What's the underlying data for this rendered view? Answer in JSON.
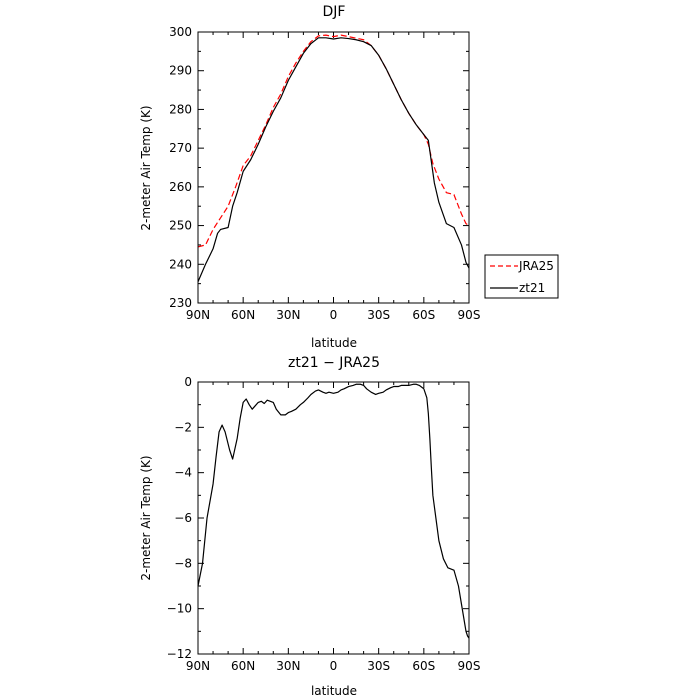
{
  "chart_data": [
    {
      "type": "line",
      "title": "DJF",
      "xlabel": "latitude",
      "ylabel": "2-meter Air Temp (K)",
      "xlim": [
        90,
        -90
      ],
      "ylim": [
        230,
        300
      ],
      "xticks": [
        90,
        60,
        30,
        0,
        -30,
        -60,
        -90
      ],
      "xtick_labels": [
        "90N",
        "60N",
        "30N",
        "0",
        "30S",
        "60S",
        "90S"
      ],
      "yticks": [
        230,
        240,
        250,
        260,
        270,
        280,
        290,
        300
      ],
      "ytick_labels": [
        "230",
        "240",
        "250",
        "260",
        "270",
        "280",
        "290",
        "300"
      ],
      "legend_position": "right",
      "series": [
        {
          "name": "JRA25",
          "color": "#ff0000",
          "style": "dashed",
          "x": [
            90,
            85,
            80,
            75,
            70,
            65,
            60,
            55,
            50,
            45,
            40,
            35,
            30,
            25,
            20,
            15,
            10,
            5,
            0,
            -5,
            -10,
            -15,
            -20,
            -25,
            -30,
            -35,
            -40,
            -45,
            -50,
            -55,
            -60,
            -63,
            -66,
            -70,
            -75,
            -80,
            -85,
            -88,
            -90
          ],
          "y": [
            244.5,
            245,
            249,
            252,
            255,
            260,
            265.5,
            268,
            272,
            276,
            280.5,
            284,
            288.5,
            292,
            295,
            297.5,
            299,
            299.2,
            298.8,
            299.2,
            298.8,
            298.4,
            298,
            296.5,
            294,
            290.5,
            286.5,
            282.5,
            279,
            276,
            273.5,
            271,
            266,
            262,
            258.5,
            258,
            253,
            250.5,
            250
          ]
        },
        {
          "name": "zt21",
          "color": "#000000",
          "style": "solid",
          "x": [
            90,
            85,
            80,
            77,
            75,
            70,
            67,
            64,
            60,
            55,
            50,
            45,
            40,
            35,
            30,
            25,
            20,
            15,
            10,
            5,
            0,
            -5,
            -10,
            -15,
            -20,
            -25,
            -30,
            -35,
            -40,
            -45,
            -50,
            -55,
            -60,
            -63,
            -65,
            -67,
            -70,
            -75,
            -80,
            -85,
            -88,
            -90
          ],
          "y": [
            235.5,
            240,
            244,
            248,
            249,
            249.5,
            255,
            258.5,
            264,
            267,
            271,
            275.5,
            279.5,
            283,
            287.5,
            291,
            294.5,
            297,
            298.5,
            298.5,
            298.2,
            298.5,
            298.3,
            298,
            297.5,
            296.5,
            294,
            290.5,
            286.5,
            282.5,
            279,
            276,
            273.5,
            272,
            266.5,
            261,
            256,
            250.5,
            249.5,
            245,
            240.5,
            239
          ]
        }
      ]
    },
    {
      "type": "line",
      "title": "zt21 − JRA25",
      "xlabel": "latitude",
      "ylabel": "2-meter Air Temp (K)",
      "xlim": [
        90,
        -90
      ],
      "ylim": [
        -12,
        0
      ],
      "xticks": [
        90,
        60,
        30,
        0,
        -30,
        -60,
        -90
      ],
      "xtick_labels": [
        "90N",
        "60N",
        "30N",
        "0",
        "30S",
        "60S",
        "90S"
      ],
      "yticks": [
        -12,
        -10,
        -8,
        -6,
        -4,
        -2,
        0
      ],
      "ytick_labels": [
        "−12",
        "−10",
        "−8",
        "−6",
        "−4",
        "−2",
        "0"
      ],
      "series": [
        {
          "color": "#000000",
          "style": "solid",
          "x": [
            90,
            87,
            84,
            80,
            78,
            76,
            74,
            72,
            69,
            67,
            64,
            62,
            60,
            58,
            56,
            54,
            52,
            50,
            48,
            46,
            44,
            42,
            40,
            38,
            35,
            32,
            30,
            28,
            25,
            22,
            20,
            17,
            15,
            12,
            10,
            7,
            5,
            3,
            0,
            -3,
            -5,
            -7,
            -10,
            -13,
            -15,
            -18,
            -20,
            -22,
            -25,
            -28,
            -30,
            -33,
            -35,
            -38,
            -40,
            -43,
            -45,
            -48,
            -50,
            -53,
            -55,
            -57,
            -60,
            -62,
            -63,
            -64,
            -65,
            -66,
            -68,
            -70,
            -73,
            -76,
            -80,
            -83,
            -85,
            -87,
            -88,
            -89,
            -90
          ],
          "y": [
            -9,
            -8,
            -6,
            -4.5,
            -3.3,
            -2.2,
            -1.9,
            -2.2,
            -3,
            -3.4,
            -2.5,
            -1.6,
            -0.9,
            -0.75,
            -1.0,
            -1.2,
            -1.05,
            -0.9,
            -0.85,
            -0.95,
            -0.8,
            -0.85,
            -0.9,
            -1.2,
            -1.45,
            -1.45,
            -1.35,
            -1.3,
            -1.2,
            -1.0,
            -0.9,
            -0.7,
            -0.55,
            -0.4,
            -0.35,
            -0.45,
            -0.5,
            -0.45,
            -0.5,
            -0.45,
            -0.35,
            -0.3,
            -0.2,
            -0.15,
            -0.1,
            -0.1,
            -0.15,
            -0.3,
            -0.45,
            -0.55,
            -0.5,
            -0.45,
            -0.35,
            -0.25,
            -0.2,
            -0.2,
            -0.15,
            -0.15,
            -0.15,
            -0.1,
            -0.1,
            -0.15,
            -0.3,
            -0.7,
            -1.4,
            -2.5,
            -3.8,
            -5.0,
            -6.0,
            -7.0,
            -7.8,
            -8.2,
            -8.3,
            -9.0,
            -9.8,
            -10.6,
            -11.0,
            -11.2,
            -11.3
          ]
        }
      ]
    }
  ]
}
